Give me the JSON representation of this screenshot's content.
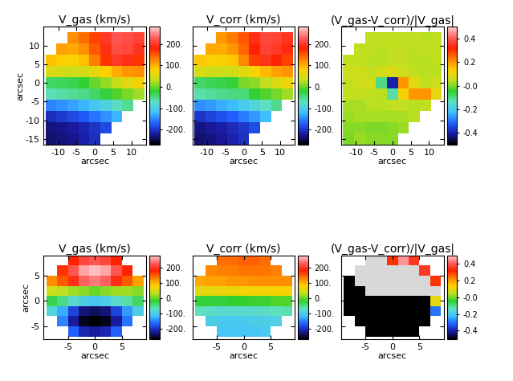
{
  "chart_data": [
    {
      "type": "heatmap",
      "title": "V_gas (km/s)",
      "x_label": "arcsec",
      "y_label": "arcsec",
      "x": [
        -12,
        -9,
        -6,
        -3,
        0,
        3,
        6,
        9,
        12
      ],
      "y": [
        -15,
        -12,
        -9,
        -6,
        -3,
        0,
        3,
        6,
        9,
        12
      ],
      "cells": [
        [
          -235,
          -230,
          -225,
          -215,
          -205,
          null,
          null,
          null,
          null
        ],
        [
          -230,
          -225,
          -220,
          -210,
          -200,
          -185,
          null,
          null,
          null
        ],
        [
          -205,
          -195,
          -185,
          -175,
          -160,
          -145,
          -125,
          null,
          null
        ],
        [
          -150,
          -145,
          -135,
          -125,
          -110,
          -95,
          -75,
          -55,
          null
        ],
        [
          -65,
          -60,
          -55,
          -50,
          -40,
          -25,
          -10,
          5,
          20
        ],
        [
          -40,
          -35,
          -30,
          -20,
          0,
          15,
          35,
          55,
          70
        ],
        [
          50,
          45,
          40,
          45,
          60,
          80,
          100,
          115,
          120
        ],
        [
          90,
          80,
          75,
          90,
          130,
          170,
          200,
          190,
          170
        ],
        [
          null,
          110,
          105,
          120,
          150,
          190,
          215,
          210,
          195
        ],
        [
          null,
          null,
          120,
          140,
          160,
          200,
          220,
          215,
          205
        ]
      ],
      "xlim": [
        -14,
        14
      ],
      "ylim": [
        -16.5,
        15
      ],
      "xticks": [
        -10,
        -5,
        0,
        5,
        10
      ],
      "yticks": [
        -15,
        -10,
        -5,
        0,
        5,
        10
      ],
      "color_range": [
        -270,
        280
      ],
      "color_ticks": [
        {
          "value": -200,
          "label": "-200."
        },
        {
          "value": -100,
          "label": "-100."
        },
        {
          "value": 0,
          "label": "0."
        },
        {
          "value": 100,
          "label": "100."
        },
        {
          "value": 200,
          "label": "200."
        }
      ]
    },
    {
      "type": "heatmap",
      "title": "V_corr (km/s)",
      "x_label": "arcsec",
      "tick_labels": "x",
      "x": [
        -12,
        -9,
        -6,
        -3,
        0,
        3,
        6,
        9,
        12
      ],
      "y": [
        -15,
        -12,
        -9,
        -6,
        -3,
        0,
        3,
        6,
        9,
        12
      ],
      "cells": [
        [
          -235,
          -230,
          -222,
          -212,
          -203,
          null,
          null,
          null,
          null
        ],
        [
          -228,
          -222,
          -217,
          -207,
          -198,
          -182,
          null,
          null,
          null
        ],
        [
          -200,
          -190,
          -180,
          -170,
          -155,
          -140,
          -120,
          null,
          null
        ],
        [
          -145,
          -140,
          -130,
          -120,
          -105,
          -90,
          -72,
          -52,
          null
        ],
        [
          -62,
          -57,
          -52,
          -48,
          -45,
          -22,
          -8,
          4,
          18
        ],
        [
          -38,
          -33,
          -28,
          -22,
          5,
          12,
          32,
          52,
          66
        ],
        [
          47,
          42,
          38,
          42,
          55,
          75,
          95,
          110,
          115
        ],
        [
          85,
          76,
          72,
          86,
          124,
          162,
          192,
          182,
          162
        ],
        [
          null,
          105,
          100,
          115,
          143,
          181,
          205,
          200,
          186
        ],
        [
          null,
          null,
          115,
          133,
          152,
          190,
          210,
          205,
          195
        ]
      ],
      "xlim": [
        -14,
        14
      ],
      "ylim": [
        -16.5,
        15
      ],
      "xticks": [
        -10,
        -5,
        0,
        5,
        10
      ],
      "yticks": [
        -15,
        -10,
        -5,
        0,
        5,
        10
      ],
      "color_range": [
        -270,
        280
      ],
      "color_ticks": [
        {
          "value": -200,
          "label": "-200."
        },
        {
          "value": -100,
          "label": "-100."
        },
        {
          "value": 0,
          "label": "0."
        },
        {
          "value": 100,
          "label": "100."
        },
        {
          "value": 200,
          "label": "200."
        }
      ]
    },
    {
      "type": "heatmap",
      "title": "(V_gas-V_corr)/|V_gas|",
      "x_label": "arcsec",
      "tick_labels": "x",
      "x": [
        -12,
        -9,
        -6,
        -3,
        0,
        3,
        6,
        9,
        12
      ],
      "y": [
        -15,
        -12,
        -9,
        -6,
        -3,
        0,
        3,
        6,
        9,
        12
      ],
      "cells": [
        [
          0.0,
          0.02,
          0.01,
          0.01,
          0.01,
          null,
          null,
          null,
          null
        ],
        [
          0.01,
          0.01,
          0.0,
          0.0,
          0.01,
          0.02,
          null,
          null,
          null
        ],
        [
          0.02,
          0.03,
          0.03,
          0.03,
          0.03,
          0.03,
          0.04,
          null,
          null
        ],
        [
          0.03,
          0.03,
          0.04,
          0.04,
          0.05,
          0.05,
          0.04,
          0.05,
          null
        ],
        [
          0.05,
          0.05,
          0.05,
          0.04,
          -0.12,
          0.12,
          0.2,
          0.2,
          0.1
        ],
        [
          0.05,
          0.06,
          0.07,
          -0.1,
          -0.4,
          0.2,
          0.09,
          0.05,
          0.06
        ],
        [
          0.06,
          0.07,
          0.05,
          0.07,
          0.08,
          0.06,
          0.05,
          0.04,
          0.04
        ],
        [
          0.05,
          0.05,
          0.04,
          0.04,
          0.05,
          0.05,
          0.04,
          0.04,
          0.05
        ],
        [
          null,
          0.05,
          0.05,
          0.04,
          0.05,
          0.05,
          0.04,
          0.05,
          0.05
        ],
        [
          null,
          null,
          0.05,
          0.05,
          0.05,
          0.05,
          0.05,
          0.04,
          0.05
        ]
      ],
      "xlim": [
        -14,
        14
      ],
      "ylim": [
        -16.5,
        15
      ],
      "xticks": [
        -10,
        -5,
        0,
        5,
        10
      ],
      "yticks": [
        -15,
        -10,
        -5,
        0,
        5,
        10
      ],
      "color_range": [
        -0.5,
        0.5
      ],
      "color_ticks": [
        -0.4,
        -0.2,
        {
          "value": 0,
          "label": "-0.0"
        },
        0.2,
        0.4
      ]
    },
    {
      "type": "heatmap",
      "title": "V_gas (km/s)",
      "x_label": "arcsec",
      "y_label": "arcsec",
      "x": [
        -8,
        -6,
        -4,
        -2,
        0,
        2,
        4,
        6,
        8
      ],
      "y": [
        -6,
        -4,
        -2,
        0,
        2,
        4,
        6,
        8
      ],
      "cells": [
        [
          null,
          null,
          -170,
          -210,
          -220,
          -210,
          -170,
          null,
          null
        ],
        [
          null,
          -150,
          -220,
          -260,
          -270,
          -260,
          -220,
          -160,
          null
        ],
        [
          -90,
          -130,
          -190,
          -230,
          -240,
          -230,
          -190,
          -140,
          -100
        ],
        [
          -30,
          -50,
          -80,
          -100,
          -110,
          -100,
          -80,
          -60,
          -40
        ],
        [
          40,
          30,
          20,
          10,
          0,
          10,
          20,
          20,
          10
        ],
        [
          120,
          150,
          190,
          230,
          240,
          230,
          190,
          150,
          110
        ],
        [
          null,
          170,
          220,
          260,
          270,
          260,
          220,
          180,
          null
        ],
        [
          null,
          null,
          180,
          210,
          220,
          210,
          180,
          null,
          null
        ]
      ],
      "xlim": [
        -9.5,
        9.5
      ],
      "ylim": [
        -7.5,
        9
      ],
      "xticks": [
        -5,
        0,
        5
      ],
      "yticks": [
        -5,
        0,
        5
      ],
      "color_range": [
        -270,
        280
      ],
      "color_ticks": [
        {
          "value": -200,
          "label": "-200."
        },
        {
          "value": -100,
          "label": "-100."
        },
        {
          "value": 0,
          "label": "0."
        },
        {
          "value": 100,
          "label": "100."
        },
        {
          "value": 200,
          "label": "200."
        }
      ]
    },
    {
      "type": "heatmap",
      "title": "V_corr (km/s)",
      "x_label": "arcsec",
      "tick_labels": "x",
      "x": [
        -8,
        -6,
        -4,
        -2,
        0,
        2,
        4,
        6,
        8
      ],
      "y": [
        -6,
        -4,
        -2,
        0,
        2,
        4,
        6,
        8
      ],
      "cells": [
        [
          null,
          null,
          -110,
          -110,
          -110,
          -110,
          -105,
          null,
          null
        ],
        [
          null,
          -100,
          -105,
          -105,
          -105,
          -100,
          -100,
          -95,
          null
        ],
        [
          -70,
          -75,
          -80,
          -80,
          -80,
          -80,
          -75,
          -70,
          -65
        ],
        [
          -25,
          -25,
          -25,
          -20,
          -20,
          -15,
          -15,
          -10,
          -10
        ],
        [
          60,
          60,
          65,
          65,
          70,
          70,
          70,
          75,
          75
        ],
        [
          105,
          110,
          110,
          115,
          115,
          120,
          120,
          120,
          120
        ],
        [
          null,
          125,
          130,
          130,
          135,
          135,
          135,
          130,
          null
        ],
        [
          null,
          null,
          140,
          140,
          145,
          145,
          140,
          null,
          null
        ]
      ],
      "xlim": [
        -9.5,
        9.5
      ],
      "ylim": [
        -7.5,
        9
      ],
      "xticks": [
        -5,
        0,
        5
      ],
      "yticks": [
        -5,
        0,
        5
      ],
      "color_range": [
        -270,
        280
      ],
      "color_ticks": [
        {
          "value": -200,
          "label": "-200."
        },
        {
          "value": -100,
          "label": "-100."
        },
        {
          "value": 0,
          "label": "0."
        },
        {
          "value": 100,
          "label": "100."
        },
        {
          "value": 200,
          "label": "200."
        }
      ]
    },
    {
      "type": "heatmap",
      "title": "(V_gas-V_corr)/|V_gas|",
      "x_label": "arcsec",
      "tick_labels": "x",
      "x": [
        -8,
        -6,
        -4,
        -2,
        0,
        2,
        4,
        6,
        8
      ],
      "y": [
        -6,
        -4,
        -2,
        0,
        2,
        4,
        6,
        8
      ],
      "cells": [
        [
          null,
          null,
          -0.8,
          -0.8,
          -0.8,
          -0.8,
          -0.8,
          null,
          null
        ],
        [
          null,
          -0.8,
          -0.8,
          -0.8,
          -0.8,
          -0.8,
          -0.8,
          -0.6,
          null
        ],
        [
          -0.8,
          -0.8,
          -0.8,
          -0.8,
          -0.8,
          -0.8,
          -0.8,
          -0.5,
          -0.3
        ],
        [
          -0.8,
          -0.8,
          -0.8,
          -0.8,
          -0.8,
          -0.8,
          -0.8,
          -0.8,
          0.1
        ],
        [
          -0.8,
          -0.8,
          0.7,
          0.7,
          0.7,
          0.7,
          0.7,
          0.7,
          0.6
        ],
        [
          -0.8,
          0.7,
          0.7,
          0.7,
          0.7,
          0.7,
          0.7,
          0.7,
          0.3
        ],
        [
          null,
          0.7,
          0.7,
          0.7,
          0.7,
          0.7,
          0.7,
          0.35,
          null
        ],
        [
          null,
          null,
          0.7,
          0.7,
          0.3,
          0.45,
          0.35,
          null,
          null
        ]
      ],
      "xlim": [
        -9.5,
        9.5
      ],
      "ylim": [
        -7.5,
        9
      ],
      "xticks": [
        -5,
        0,
        5
      ],
      "yticks": [
        -5,
        0,
        5
      ],
      "color_range": [
        -0.5,
        0.5
      ],
      "color_ticks": [
        -0.4,
        -0.2,
        {
          "value": 0,
          "label": "-0.0"
        },
        0.2,
        0.4
      ]
    }
  ]
}
